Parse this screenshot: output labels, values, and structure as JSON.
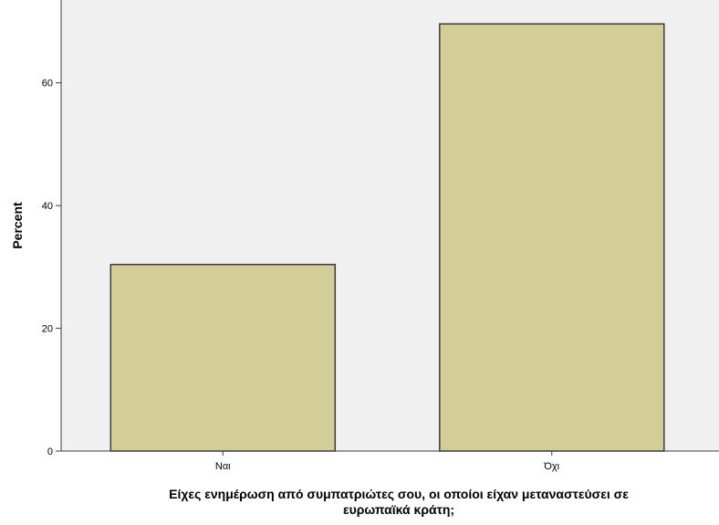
{
  "chart_data": {
    "type": "bar",
    "categories": [
      "Ναι",
      "Όχι"
    ],
    "values": [
      30.4,
      69.6
    ],
    "xlabel_lines": [
      "Είχες ενημέρωση από συμπατριώτες σου, οι οποίοι είχαν μεταναστεύσει σε",
      "ευρωπαϊκά κράτη;"
    ],
    "ylabel": "Percent",
    "yticks": [
      0,
      20,
      40,
      60
    ],
    "ylim": [
      0,
      73.5
    ],
    "grid": false,
    "colors": {
      "plot_background": "#f0f0f0",
      "bar_fill": "#d3ce97",
      "bar_stroke": "#3c3c3c",
      "axis": "#3c3c3c"
    }
  }
}
